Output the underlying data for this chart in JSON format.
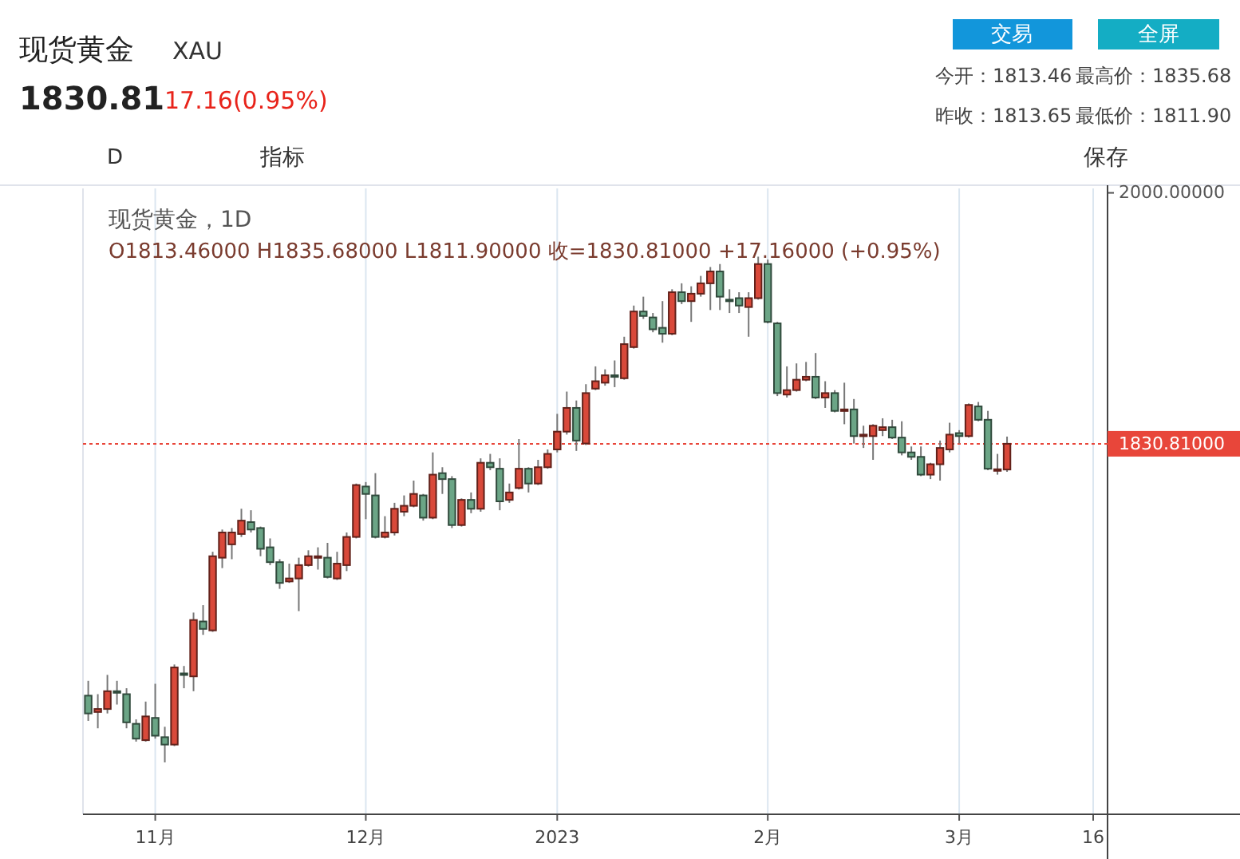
{
  "chart_data": {
    "type": "candlestick",
    "title": "现货黄金",
    "subtitle": "XAU",
    "annotations": [
      "1830.81",
      "17.16(0.95%)",
      "交易",
      "全屏",
      "今开：1813.46",
      "最高价：1835.68",
      "昨收：1813.65",
      "最低价：1811.90",
      "D",
      "指标",
      "保存",
      "现货黄金，1D",
      "O1813.46000  H1835.68000  L1811.90000  收=1830.81000  +17.16000 (+0.95%)"
    ],
    "categories": [
      null,
      null,
      null,
      null,
      null,
      null,
      null,
      "11月",
      null,
      null,
      null,
      null,
      null,
      null,
      null,
      null,
      null,
      null,
      null,
      null,
      null,
      null,
      null,
      null,
      null,
      null,
      null,
      null,
      null,
      "12月",
      null,
      null,
      null,
      null,
      null,
      null,
      null,
      null,
      null,
      null,
      null,
      null,
      null,
      null,
      null,
      null,
      null,
      null,
      null,
      "2023",
      null,
      null,
      null,
      null,
      null,
      null,
      null,
      null,
      null,
      null,
      null,
      null,
      null,
      null,
      null,
      null,
      null,
      null,
      null,
      null,
      null,
      "2月",
      null,
      null,
      null,
      null,
      null,
      null,
      null,
      null,
      null,
      null,
      null,
      null,
      null,
      null,
      null,
      null,
      null,
      null,
      null,
      "3月",
      null,
      null,
      null,
      null,
      null,
      null,
      null,
      null,
      null,
      null,
      null,
      null,
      null,
      "16",
      null
    ],
    "ohlc": [
      [
        1661,
        1671,
        1644,
        1649
      ],
      [
        1650,
        1662,
        1639,
        1652
      ],
      [
        1652,
        1675,
        1649,
        1664
      ],
      [
        1664,
        1671,
        1655,
        1663
      ],
      [
        1662,
        1666,
        1639,
        1643
      ],
      [
        1642,
        1645,
        1630,
        1632
      ],
      [
        1631,
        1657,
        1630,
        1647
      ],
      [
        1646,
        1669,
        1632,
        1634
      ],
      [
        1633,
        1640,
        1616,
        1628
      ],
      [
        1628,
        1682,
        1627,
        1680
      ],
      [
        1676,
        1681,
        1666,
        1675
      ],
      [
        1674,
        1717,
        1664,
        1712
      ],
      [
        1711,
        1722,
        1702,
        1706
      ],
      [
        1705,
        1758,
        1704,
        1755
      ],
      [
        1754,
        1773,
        1747,
        1771
      ],
      [
        1763,
        1774,
        1753,
        1771
      ],
      [
        1770,
        1787,
        1768,
        1779
      ],
      [
        1778,
        1786,
        1771,
        1773
      ],
      [
        1774,
        1775,
        1755,
        1760
      ],
      [
        1761,
        1767,
        1749,
        1751
      ],
      [
        1751,
        1753,
        1733,
        1737
      ],
      [
        1738,
        1750,
        1737,
        1740
      ],
      [
        1740,
        1754,
        1718,
        1749
      ],
      [
        1749,
        1759,
        1748,
        1755
      ],
      [
        1754,
        1761,
        1746,
        1755
      ],
      [
        1754,
        1764,
        1740,
        1741
      ],
      [
        1740,
        1758,
        1739,
        1750
      ],
      [
        1749,
        1771,
        1745,
        1768
      ],
      [
        1768,
        1804,
        1767,
        1803
      ],
      [
        1802,
        1805,
        1780,
        1797
      ],
      [
        1796,
        1811,
        1767,
        1768
      ],
      [
        1768,
        1782,
        1767,
        1771
      ],
      [
        1771,
        1791,
        1769,
        1787
      ],
      [
        1785,
        1796,
        1782,
        1789
      ],
      [
        1789,
        1806,
        1788,
        1797
      ],
      [
        1796,
        1797,
        1779,
        1781
      ],
      [
        1781,
        1825,
        1780,
        1810
      ],
      [
        1811,
        1815,
        1797,
        1807
      ],
      [
        1807,
        1809,
        1774,
        1776
      ],
      [
        1776,
        1794,
        1775,
        1793
      ],
      [
        1793,
        1798,
        1784,
        1787
      ],
      [
        1787,
        1821,
        1785,
        1818
      ],
      [
        1818,
        1824,
        1813,
        1815
      ],
      [
        1814,
        1821,
        1786,
        1792
      ],
      [
        1793,
        1804,
        1791,
        1798
      ],
      [
        1801,
        1834,
        1800,
        1814
      ],
      [
        1814,
        1815,
        1798,
        1804
      ],
      [
        1804,
        1820,
        1803,
        1815
      ],
      [
        1815,
        1827,
        1814,
        1824
      ],
      [
        1827,
        1851,
        1825,
        1839
      ],
      [
        1839,
        1866,
        1837,
        1855
      ],
      [
        1855,
        1860,
        1826,
        1833
      ],
      [
        1831,
        1871,
        1830,
        1865
      ],
      [
        1868,
        1883,
        1867,
        1873
      ],
      [
        1872,
        1881,
        1870,
        1877
      ],
      [
        1877,
        1887,
        1869,
        1876
      ],
      [
        1875,
        1903,
        1874,
        1898
      ],
      [
        1896,
        1924,
        1895,
        1920
      ],
      [
        1920,
        1930,
        1915,
        1917
      ],
      [
        1916,
        1919,
        1906,
        1908
      ],
      [
        1909,
        1927,
        1899,
        1905
      ],
      [
        1905,
        1935,
        1904,
        1933
      ],
      [
        1933,
        1939,
        1925,
        1927
      ],
      [
        1927,
        1937,
        1913,
        1932
      ],
      [
        1932,
        1944,
        1930,
        1939
      ],
      [
        1939,
        1950,
        1921,
        1947
      ],
      [
        1947,
        1952,
        1921,
        1930
      ],
      [
        1928,
        1935,
        1919,
        1927
      ],
      [
        1929,
        1933,
        1919,
        1924
      ],
      [
        1923,
        1933,
        1903,
        1929
      ],
      [
        1929,
        1957,
        1928,
        1952
      ],
      [
        1952,
        1955,
        1912,
        1913
      ],
      [
        1912,
        1913,
        1863,
        1865
      ],
      [
        1864,
        1883,
        1862,
        1867
      ],
      [
        1867,
        1885,
        1866,
        1874
      ],
      [
        1874,
        1886,
        1873,
        1876
      ],
      [
        1876,
        1892,
        1861,
        1862
      ],
      [
        1862,
        1873,
        1855,
        1865
      ],
      [
        1865,
        1867,
        1852,
        1853
      ],
      [
        1853,
        1872,
        1844,
        1854
      ],
      [
        1854,
        1861,
        1831,
        1836
      ],
      [
        1836,
        1843,
        1828,
        1837
      ],
      [
        1836,
        1844,
        1820,
        1843
      ],
      [
        1840,
        1848,
        1836,
        1842
      ],
      [
        1842,
        1847,
        1834,
        1835
      ],
      [
        1835,
        1846,
        1823,
        1825
      ],
      [
        1825,
        1829,
        1820,
        1822
      ],
      [
        1822,
        1829,
        1809,
        1810
      ],
      [
        1810,
        1818,
        1807,
        1817
      ],
      [
        1817,
        1833,
        1806,
        1828
      ],
      [
        1827,
        1845,
        1825,
        1837
      ],
      [
        1838,
        1840,
        1831,
        1836
      ],
      [
        1836,
        1858,
        1835,
        1857
      ],
      [
        1856,
        1859,
        1846,
        1847
      ],
      [
        1847,
        1853,
        1813,
        1814
      ],
      [
        1813,
        1824,
        1810,
        1813.65
      ],
      [
        1813.46,
        1835.68,
        1811.9,
        1830.81
      ],
      null,
      null,
      null,
      null,
      null,
      null,
      null,
      null,
      null,
      null
    ],
    "colors": [
      "#6ba586",
      "#d9493a",
      "#d9493a",
      "#6ba586",
      "#6ba586",
      "#6ba586",
      "#d9493a",
      "#6ba586",
      "#6ba586",
      "#d9493a",
      "#6ba586",
      "#d9493a",
      "#6ba586",
      "#d9493a",
      "#d9493a",
      "#d9493a",
      "#d9493a",
      "#6ba586",
      "#6ba586",
      "#6ba586",
      "#6ba586",
      "#d9493a",
      "#d9493a",
      "#d9493a",
      "#d9493a",
      "#6ba586",
      "#d9493a",
      "#d9493a",
      "#d9493a",
      "#6ba586",
      "#6ba586",
      "#d9493a",
      "#d9493a",
      "#d9493a",
      "#d9493a",
      "#6ba586",
      "#d9493a",
      "#6ba586",
      "#6ba586",
      "#d9493a",
      "#6ba586",
      "#d9493a",
      "#6ba586",
      "#6ba586",
      "#d9493a",
      "#d9493a",
      "#6ba586",
      "#d9493a",
      "#d9493a",
      "#d9493a",
      "#d9493a",
      "#6ba586",
      "#d9493a",
      "#d9493a",
      "#d9493a",
      "#6ba586",
      "#d9493a",
      "#d9493a",
      "#6ba586",
      "#6ba586",
      "#6ba586",
      "#d9493a",
      "#6ba586",
      "#d9493a",
      "#d9493a",
      "#d9493a",
      "#6ba586",
      "#6ba586",
      "#6ba586",
      "#d9493a",
      "#d9493a",
      "#6ba586",
      "#6ba586",
      "#d9493a",
      "#d9493a",
      "#d9493a",
      "#6ba586",
      "#d9493a",
      "#6ba586",
      "#d9493a",
      "#6ba586",
      "#d9493a",
      "#d9493a",
      "#d9493a",
      "#6ba586",
      "#6ba586",
      "#6ba586",
      "#6ba586",
      "#d9493a",
      "#d9493a",
      "#d9493a",
      "#6ba586",
      "#d9493a",
      "#6ba586",
      "#6ba586",
      "#d9493a",
      "#d9493a",
      null,
      null,
      null,
      null,
      null,
      null,
      null,
      null,
      null,
      null
    ],
    "ylim": [
      1581,
      2003
    ],
    "yticks": [
      {
        "value": 1830.81,
        "label": "1830.81000"
      },
      {
        "value": 2000,
        "label": "2000.00000"
      }
    ],
    "ref_lines": [
      {
        "axis": "y",
        "value": 1830.81,
        "color": "#e8463a",
        "line_style": "dotted"
      }
    ],
    "grid": "x"
  }
}
